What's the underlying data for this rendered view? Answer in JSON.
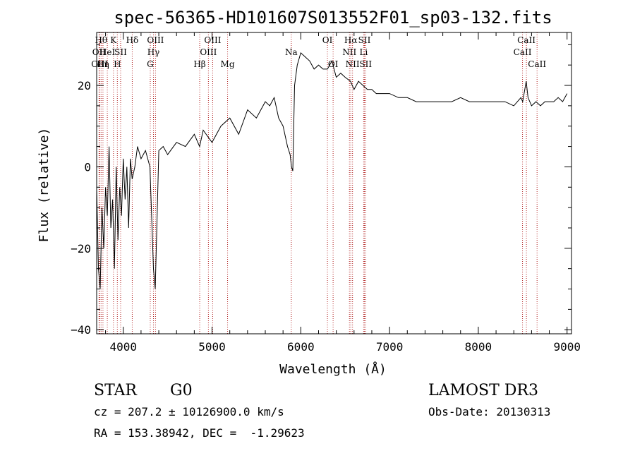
{
  "title": "spec-56365-HD101607S013552F01_sp03-132.fits",
  "info": {
    "class_label": "STAR",
    "subclass_label": "G0",
    "survey": "LAMOST DR3",
    "cz_line": "cz = 207.2 ± 10126900.0 km/s",
    "obs_date_line": "Obs-Date: 20130313",
    "radec_line": "RA = 153.38942, DEC =  -1.29623"
  },
  "colors": {
    "line_marker": "#b22222",
    "spectrum": "#000000",
    "axes": "#000000",
    "background": "#ffffff"
  },
  "chart_data": {
    "type": "line",
    "xlabel": "Wavelength (Å)",
    "ylabel": "Flux (relative)",
    "xlim": [
      3700,
      9050
    ],
    "ylim": [
      -41,
      33
    ],
    "xticks": [
      4000,
      5000,
      6000,
      7000,
      8000,
      9000
    ],
    "yticks": [
      -40,
      -20,
      0,
      20
    ],
    "grid": false,
    "series": [
      {
        "x": [
          3700,
          3720,
          3740,
          3760,
          3780,
          3800,
          3820,
          3840,
          3860,
          3880,
          3900,
          3920,
          3940,
          3960,
          3980,
          4000,
          4020,
          4040,
          4060,
          4080,
          4100,
          4130,
          4160,
          4200,
          4250,
          4300,
          4340,
          4360,
          4400,
          4450,
          4500,
          4600,
          4700,
          4800,
          4860,
          4900,
          5000,
          5100,
          5200,
          5300,
          5400,
          5500,
          5550,
          5600,
          5650,
          5700,
          5750,
          5800,
          5850,
          5880,
          5895,
          5910,
          5930,
          5960,
          6000,
          6050,
          6100,
          6150,
          6200,
          6250,
          6300,
          6350,
          6400,
          6450,
          6500,
          6560,
          6600,
          6650,
          6700,
          6750,
          6800,
          6850,
          6900,
          7000,
          7100,
          7200,
          7300,
          7400,
          7500,
          7600,
          7700,
          7800,
          7900,
          8000,
          8100,
          8200,
          8300,
          8400,
          8480,
          8500,
          8540,
          8560,
          8600,
          8650,
          8700,
          8750,
          8800,
          8850,
          8900,
          8950,
          9000
        ],
        "y": [
          -5,
          -25,
          -30,
          -10,
          -20,
          -5,
          -12,
          5,
          -15,
          -8,
          -25,
          0,
          -18,
          -5,
          -12,
          2,
          -8,
          0,
          -15,
          2,
          -3,
          0,
          5,
          2,
          4,
          0,
          -25,
          -30,
          4,
          5,
          3,
          6,
          5,
          8,
          5,
          9,
          6,
          10,
          12,
          8,
          14,
          12,
          14,
          16,
          15,
          17,
          12,
          10,
          5,
          3,
          0,
          -1,
          20,
          25,
          28,
          27,
          26,
          24,
          25,
          24,
          24,
          26,
          22,
          23,
          22,
          21,
          19,
          21,
          20,
          19,
          19,
          18,
          18,
          18,
          17,
          17,
          16,
          16,
          16,
          16,
          16,
          17,
          16,
          16,
          16,
          16,
          16,
          15,
          17,
          16,
          21,
          17,
          15,
          16,
          15,
          16,
          16,
          16,
          17,
          16,
          18
        ]
      }
    ],
    "line_markers": [
      {
        "wavelength": 3727,
        "label": "OII",
        "row": 1
      },
      {
        "wavelength": 3734,
        "label": "OIII",
        "row": 3
      },
      {
        "wavelength": 3750,
        "label": "Hθ",
        "row": 0
      },
      {
        "wavelength": 3771,
        "label": "Hη",
        "row": 3
      },
      {
        "wavelength": 3820,
        "label": "HeI",
        "row": 1
      },
      {
        "wavelength": 3889,
        "label": "K",
        "row": 0
      },
      {
        "wavelength": 3933,
        "label": "H",
        "row": 3
      },
      {
        "wavelength": 3970,
        "label": "SII",
        "row": 1
      },
      {
        "wavelength": 4101,
        "label": "Hδ",
        "row": 0
      },
      {
        "wavelength": 4304,
        "label": "G",
        "row": 3
      },
      {
        "wavelength": 4340,
        "label": "Hγ",
        "row": 2
      },
      {
        "wavelength": 4363,
        "label": "OIII",
        "row": 0
      },
      {
        "wavelength": 4861,
        "label": "Hβ",
        "row": 3
      },
      {
        "wavelength": 4959,
        "label": "OIII",
        "row": 1
      },
      {
        "wavelength": 5007,
        "label": "OIII",
        "row": 0
      },
      {
        "wavelength": 5175,
        "label": "Mg",
        "row": 3
      },
      {
        "wavelength": 5893,
        "label": "Na",
        "row": 2
      },
      {
        "wavelength": 6300,
        "label": "OI",
        "row": 0
      },
      {
        "wavelength": 6364,
        "label": "OI",
        "row": 3
      },
      {
        "wavelength": 6548,
        "label": "NII",
        "row": 2
      },
      {
        "wavelength": 6563,
        "label": "Hα",
        "row": 0
      },
      {
        "wavelength": 6583,
        "label": "NII",
        "row": 3
      },
      {
        "wavelength": 6708,
        "label": "Li",
        "row": 2
      },
      {
        "wavelength": 6717,
        "label": "SII",
        "row": 0
      },
      {
        "wavelength": 6731,
        "label": "SII",
        "row": 3
      },
      {
        "wavelength": 8498,
        "label": "CaII",
        "row": 1
      },
      {
        "wavelength": 8542,
        "label": "CaII",
        "row": 0
      },
      {
        "wavelength": 8662,
        "label": "CaII",
        "row": 3
      }
    ]
  }
}
